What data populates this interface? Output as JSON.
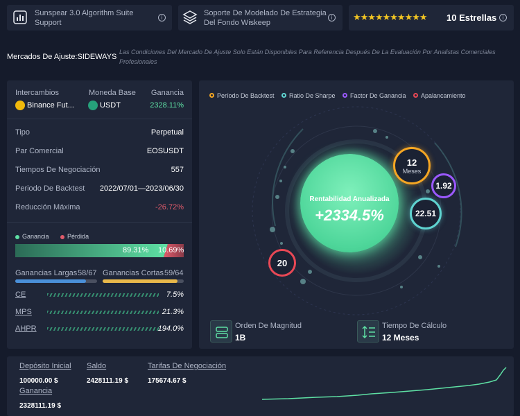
{
  "header": {
    "card1": {
      "label": "Sunspear 3.0 Algorithm Suite Support"
    },
    "card2": {
      "label": "Soporte De Modelado De Estrategia Del Fondo Wiskeep"
    },
    "card3": {
      "stars": "★★★★★★★★★★",
      "label": "10 Estrellas"
    },
    "info_glyph": "i"
  },
  "market": {
    "title": "Mercados De Ajuste:SIDEWAYS",
    "note": "Las Condiciones Del Mercado De Ajuste Solo Están Disponibles Para Referencia Después De La Evaluación Por Analistas Comerciales Profesionales"
  },
  "left": {
    "col_exchange": "Intercambios",
    "col_base": "Moneda Base",
    "col_profit": "Ganancia",
    "exchange": "Binance Fut...",
    "base": "USDT",
    "profit": "2328.11%",
    "rows": [
      {
        "label": "Tipo",
        "value": "Perpetual"
      },
      {
        "label": "Par Comercial",
        "value": "EOSUSDT"
      },
      {
        "label": "Tiempos De Negociación",
        "value": "557"
      },
      {
        "label": "Periodo De Backtest",
        "value": "2022/07/01—2023/06/30"
      },
      {
        "label": "Reducción Máxima",
        "value": "-26.72%"
      }
    ],
    "legend_win": "Ganancia",
    "legend_loss": "Pérdida",
    "win_pct": "89.31%",
    "loss_pct": "10.69%",
    "win_ratio": 0.8931,
    "long_label": "Ganancias Largas",
    "long_value": "58/67",
    "long_ratio": 0.866,
    "short_label": "Ganancias Cortas",
    "short_value": "59/64",
    "short_ratio": 0.922,
    "metrics": [
      {
        "label": "CE",
        "value": "7.5%"
      },
      {
        "label": "MPS",
        "value": "21.3%"
      },
      {
        "label": "AHPR",
        "value": "194.0%"
      }
    ]
  },
  "right": {
    "legend": [
      {
        "label": "Período De Backtest",
        "color": "#f5a623"
      },
      {
        "label": "Ratio De Sharpe",
        "color": "#5fd3d0"
      },
      {
        "label": "Factor De Ganancia",
        "color": "#9b59ff"
      },
      {
        "label": "Apalancamiento",
        "color": "#e84855"
      }
    ],
    "center_label": "Rentabilidad Anualizada",
    "center_value": "+2334.5%",
    "period_num": "12",
    "period_unit": "Meses",
    "profit_factor": "1.92",
    "sharpe": "22.51",
    "leverage": "20",
    "magnitude_label": "Orden De Magnitud",
    "magnitude_value": "1B",
    "calc_label": "Tiempo De Cálculo",
    "calc_value": "12 Meses"
  },
  "bottom": {
    "deposit_label": "Depósito Inicial",
    "deposit_value": "100000.00 $",
    "balance_label": "Saldo",
    "balance_value": "2428111.19 $",
    "fees_label": "Tarifas De Negociación",
    "fees_value": "175674.67 $",
    "profit_label": "Ganancia",
    "profit_value": "2328111.19 $"
  },
  "colors": {
    "accent": "#5ee0a4",
    "loss": "#e05b6b",
    "gold": "#e8b84a",
    "blue": "#4a90d9"
  }
}
